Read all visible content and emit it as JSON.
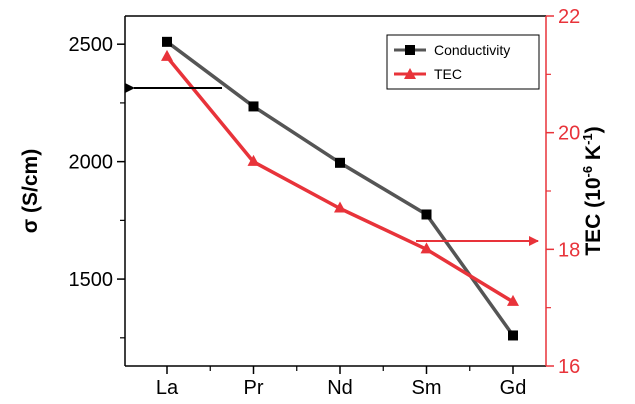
{
  "chart_data": {
    "type": "line",
    "categories": [
      "La",
      "Pr",
      "Nd",
      "Sm",
      "Gd"
    ],
    "series": [
      {
        "name": "Conductivity",
        "axis": "left",
        "values": [
          2510,
          2235,
          1995,
          1775,
          1260
        ],
        "color": "#555555",
        "marker": "square",
        "marker_color": "#000000"
      },
      {
        "name": "TEC",
        "axis": "right",
        "values": [
          21.3,
          19.5,
          18.7,
          18.0,
          17.1
        ],
        "color": "#e8333a",
        "marker": "triangle",
        "marker_color": "#e8333a"
      }
    ],
    "y_left": {
      "label_main": "σ (S/cm)",
      "ylim": [
        1130,
        2620
      ],
      "ticks": [
        "1500",
        "2000",
        "2500"
      ],
      "tick_values": [
        1500,
        2000,
        2500
      ],
      "minor_values": [
        1250,
        1750,
        2250
      ],
      "color": "#000000"
    },
    "y_right": {
      "label_prefix": "TEC (10",
      "label_sup1": "-6",
      "label_mid": " K",
      "label_sup2": "-1",
      "label_suffix": ")",
      "ylim": [
        16,
        22
      ],
      "ticks": [
        "16",
        "18",
        "20",
        "22"
      ],
      "tick_values": [
        16,
        18,
        20,
        22
      ],
      "minor_values": [
        17,
        19,
        21
      ],
      "color": "#e8333a"
    },
    "legend": {
      "placement": "top-right",
      "entries": [
        "Conductivity",
        "TEC"
      ]
    },
    "annotations": [
      {
        "type": "arrow",
        "direction": "left",
        "color": "#000000",
        "points_to": "left axis"
      },
      {
        "type": "arrow",
        "direction": "right",
        "color": "#e8333a",
        "points_to": "right axis"
      }
    ],
    "grid": false
  }
}
